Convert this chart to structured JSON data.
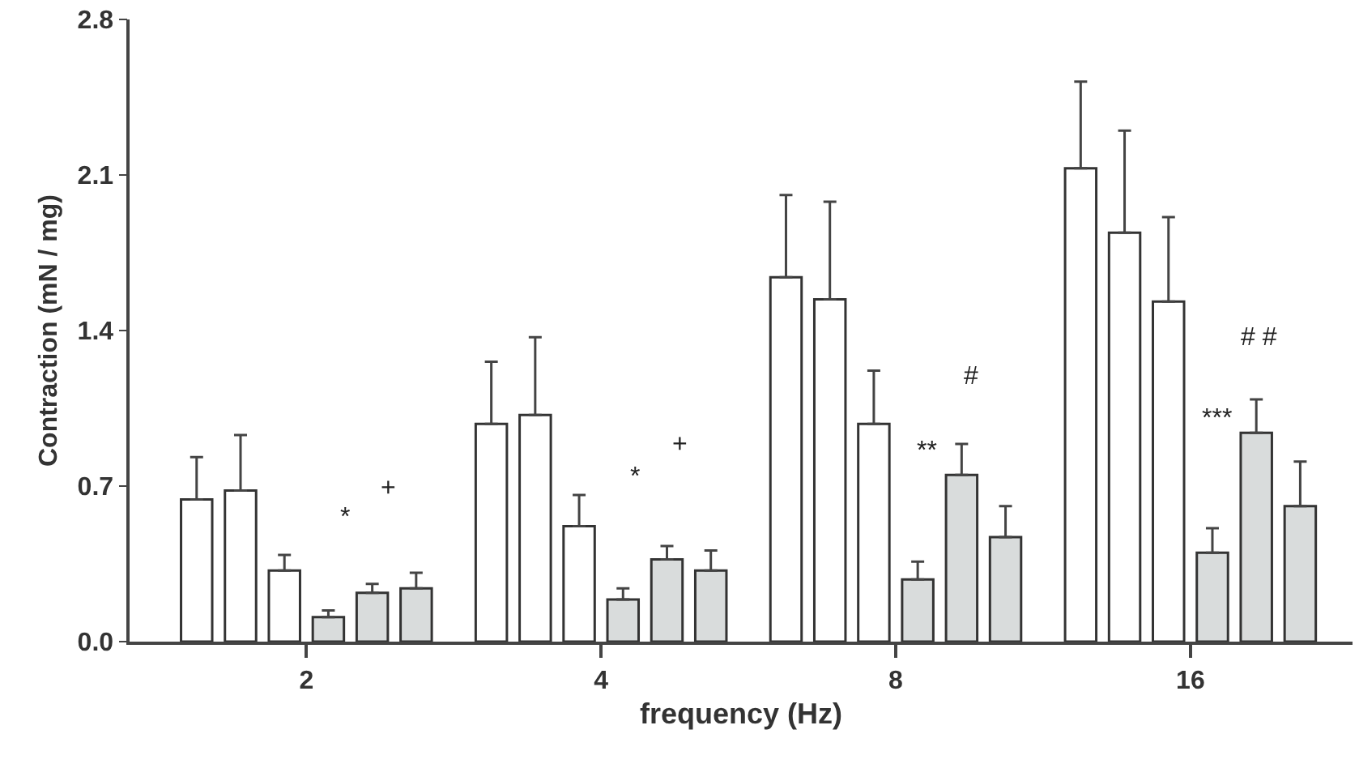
{
  "chart_data": {
    "type": "bar",
    "xlabel": "frequency (Hz)",
    "ylabel": "Contraction (mN / mg)",
    "categories": [
      "2",
      "4",
      "8",
      "16"
    ],
    "series": [
      {
        "color": "#ffffff",
        "values": [
          0.64,
          0.98,
          1.64,
          2.13
        ],
        "errors": [
          [
            0.64,
            0.83
          ],
          [
            0.98,
            1.26
          ],
          [
            1.64,
            2.01
          ],
          [
            2.13,
            2.52
          ]
        ]
      },
      {
        "color": "#ffffff",
        "values": [
          0.68,
          1.02,
          1.54,
          1.84
        ],
        "errors": [
          [
            0.68,
            0.93
          ],
          [
            1.02,
            1.37
          ],
          [
            1.54,
            1.98
          ],
          [
            1.84,
            2.3
          ]
        ]
      },
      {
        "color": "#ffffff",
        "values": [
          0.32,
          0.52,
          0.98,
          1.53
        ],
        "errors": [
          [
            0.32,
            0.39
          ],
          [
            0.52,
            0.66
          ],
          [
            0.98,
            1.22
          ],
          [
            1.53,
            1.91
          ]
        ]
      },
      {
        "color": "#d9dcdc",
        "values": [
          0.11,
          0.19,
          0.28,
          0.4
        ],
        "errors": [
          [
            0.11,
            0.14
          ],
          [
            0.19,
            0.24
          ],
          [
            0.28,
            0.36
          ],
          [
            0.4,
            0.51
          ]
        ]
      },
      {
        "color": "#d9dcdc",
        "values": [
          0.22,
          0.37,
          0.75,
          0.94
        ],
        "errors": [
          [
            0.22,
            0.26
          ],
          [
            0.37,
            0.43
          ],
          [
            0.75,
            0.89
          ],
          [
            0.94,
            1.09
          ]
        ]
      },
      {
        "color": "#d9dcdc",
        "values": [
          0.24,
          0.32,
          0.47,
          0.61
        ],
        "errors": [
          [
            0.24,
            0.31
          ],
          [
            0.32,
            0.41
          ],
          [
            0.47,
            0.61
          ],
          [
            0.61,
            0.81
          ]
        ]
      }
    ],
    "ylim": [
      0,
      2.8
    ],
    "yticks": [
      {
        "value": 0,
        "label": "0.0"
      },
      0.7,
      1.4,
      2.1,
      {
        "value": 2.8,
        "label": "2.8"
      }
    ],
    "annotations": [
      "*",
      "+",
      "*",
      "+",
      "**",
      "#",
      "***",
      "# #"
    ]
  }
}
